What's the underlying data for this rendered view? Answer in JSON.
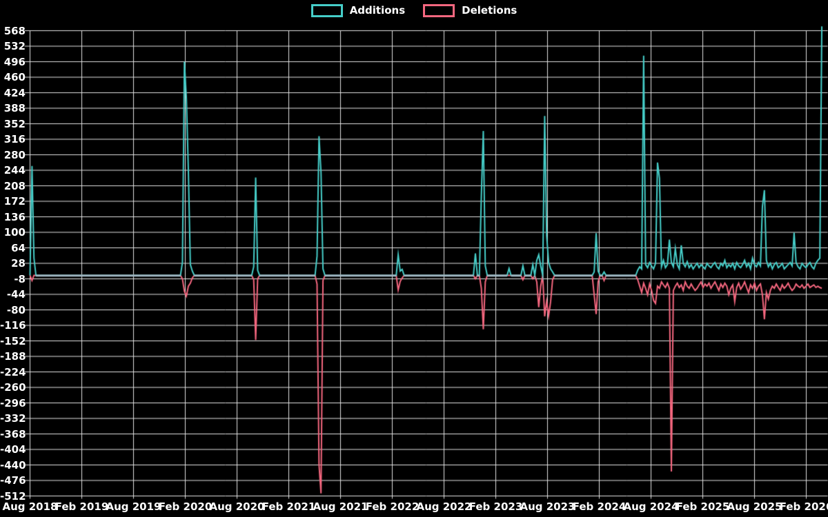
{
  "legend": {
    "items": [
      {
        "label": "Additions",
        "color": "#46cec9"
      },
      {
        "label": "Deletions",
        "color": "#f5677f"
      }
    ]
  },
  "chart_data": {
    "type": "line",
    "title": "",
    "xlabel": "",
    "ylabel": "",
    "grid": true,
    "legend_position": "top-center",
    "background_color": "#000000",
    "grid_color": "#e3e3e3",
    "text_color": "#ffffff",
    "zero_baseline_color": "#a4bac6",
    "x_axis": {
      "labels": [
        "Aug 2018",
        "Feb 2019",
        "Aug 2019",
        "Feb 2020",
        "Aug 2020",
        "Feb 2021",
        "Aug 2021",
        "Feb 2022",
        "Aug 2022",
        "Feb 2023",
        "Aug 2023",
        "Feb 2024",
        "Aug 2024",
        "Feb 2025",
        "Aug 2025",
        "Feb 2026"
      ],
      "weeks_per_label_interval": 26.143
    },
    "y_axis": {
      "min": -512,
      "max": 568,
      "tick_step": 36,
      "ticks": [
        568,
        532,
        496,
        460,
        424,
        388,
        352,
        316,
        280,
        244,
        208,
        172,
        136,
        100,
        64,
        28,
        -8,
        -44,
        -80,
        -116,
        -152,
        -188,
        -224,
        -260,
        -296,
        -332,
        -368,
        -404,
        -440,
        -476,
        -512
      ]
    },
    "series_names": [
      "Additions",
      "Deletions"
    ],
    "series_colors": [
      "#46cec9",
      "#f5677f"
    ],
    "weeks_total": 401,
    "start_period": "Aug 2018",
    "end_period": "Feb 2026",
    "default_value": 0,
    "values_note": "sparse map: weekIndex -> [additions, deletions]; all unlisted weeks are [0,0]",
    "values": {
      "1": [
        254,
        -12
      ],
      "2": [
        40,
        0
      ],
      "77": [
        30,
        -8
      ],
      "78": [
        496,
        -37
      ],
      "79": [
        410,
        -48
      ],
      "80": [
        243,
        -25
      ],
      "81": [
        25,
        -18
      ],
      "82": [
        10,
        -6
      ],
      "113": [
        20,
        -10
      ],
      "114": [
        227,
        -150
      ],
      "115": [
        12,
        -8
      ],
      "145": [
        45,
        -20
      ],
      "146": [
        323,
        -440
      ],
      "147": [
        240,
        -506
      ],
      "148": [
        15,
        -12
      ],
      "186": [
        48,
        -34
      ],
      "187": [
        10,
        -14
      ],
      "188": [
        14,
        -6
      ],
      "225": [
        51,
        -8
      ],
      "228": [
        185,
        -30
      ],
      "229": [
        335,
        -125
      ],
      "230": [
        22,
        -15
      ],
      "242": [
        16,
        0
      ],
      "249": [
        22,
        -10
      ],
      "254": [
        25,
        -8
      ],
      "256": [
        35,
        -15
      ],
      "257": [
        48,
        -74
      ],
      "258": [
        22,
        -25
      ],
      "260": [
        370,
        -95
      ],
      "261": [
        92,
        -60
      ],
      "262": [
        30,
        -94
      ],
      "263": [
        15,
        -61
      ],
      "264": [
        8,
        -10
      ],
      "285": [
        8,
        -45
      ],
      "286": [
        98,
        -90
      ],
      "287": [
        10,
        -15
      ],
      "290": [
        8,
        -12
      ],
      "307": [
        12,
        -10
      ],
      "308": [
        20,
        -25
      ],
      "309": [
        15,
        -40
      ],
      "310": [
        510,
        -18
      ],
      "311": [
        25,
        -30
      ],
      "312": [
        18,
        -45
      ],
      "313": [
        30,
        -20
      ],
      "314": [
        22,
        -35
      ],
      "315": [
        15,
        -58
      ],
      "316": [
        28,
        -65
      ],
      "317": [
        262,
        -25
      ],
      "318": [
        225,
        -30
      ],
      "319": [
        20,
        -15
      ],
      "320": [
        35,
        -22
      ],
      "321": [
        18,
        -28
      ],
      "322": [
        25,
        -18
      ],
      "323": [
        83,
        -30
      ],
      "324": [
        30,
        -455
      ],
      "325": [
        20,
        -35
      ],
      "326": [
        62,
        -25
      ],
      "327": [
        25,
        -18
      ],
      "328": [
        15,
        -28
      ],
      "329": [
        70,
        -22
      ],
      "330": [
        28,
        -35
      ],
      "331": [
        20,
        -15
      ],
      "332": [
        32,
        -25
      ],
      "333": [
        18,
        -30
      ],
      "334": [
        25,
        -20
      ],
      "335": [
        15,
        -28
      ],
      "336": [
        22,
        -35
      ],
      "337": [
        28,
        -30
      ],
      "338": [
        18,
        -22
      ],
      "339": [
        25,
        -15
      ],
      "340": [
        20,
        -28
      ],
      "341": [
        15,
        -20
      ],
      "342": [
        28,
        -25
      ],
      "343": [
        22,
        -18
      ],
      "344": [
        18,
        -30
      ],
      "345": [
        25,
        -22
      ],
      "346": [
        30,
        -15
      ],
      "347": [
        20,
        -25
      ],
      "348": [
        15,
        -35
      ],
      "349": [
        28,
        -20
      ],
      "350": [
        22,
        -28
      ],
      "351": [
        35,
        -18
      ],
      "352": [
        18,
        -25
      ],
      "353": [
        25,
        -45
      ],
      "354": [
        20,
        -30
      ],
      "355": [
        28,
        -22
      ],
      "356": [
        15,
        -61
      ],
      "357": [
        30,
        -28
      ],
      "358": [
        22,
        -18
      ],
      "359": [
        18,
        -32
      ],
      "360": [
        25,
        -25
      ],
      "361": [
        35,
        -15
      ],
      "362": [
        20,
        -28
      ],
      "363": [
        28,
        -40
      ],
      "364": [
        15,
        -22
      ],
      "365": [
        40,
        -30
      ],
      "366": [
        25,
        -18
      ],
      "367": [
        20,
        -35
      ],
      "368": [
        30,
        -25
      ],
      "369": [
        22,
        -20
      ],
      "370": [
        160,
        -45
      ],
      "371": [
        198,
        -102
      ],
      "372": [
        35,
        -40
      ],
      "373": [
        20,
        -55
      ],
      "374": [
        28,
        -35
      ],
      "375": [
        15,
        -25
      ],
      "376": [
        25,
        -30
      ],
      "377": [
        30,
        -20
      ],
      "378": [
        18,
        -28
      ],
      "379": [
        22,
        -35
      ],
      "380": [
        28,
        -22
      ],
      "381": [
        15,
        -30
      ],
      "382": [
        20,
        -25
      ],
      "383": [
        25,
        -18
      ],
      "384": [
        30,
        -28
      ],
      "385": [
        22,
        -35
      ],
      "386": [
        99,
        -30
      ],
      "387": [
        30,
        -20
      ],
      "388": [
        20,
        -25
      ],
      "389": [
        15,
        -28
      ],
      "390": [
        28,
        -22
      ],
      "391": [
        22,
        -30
      ],
      "392": [
        18,
        -25
      ],
      "393": [
        25,
        -20
      ],
      "394": [
        30,
        -28
      ],
      "395": [
        20,
        -25
      ],
      "396": [
        15,
        -22
      ],
      "397": [
        28,
        -28
      ],
      "398": [
        35,
        -25
      ],
      "399": [
        40,
        -28
      ],
      "400": [
        578,
        -30
      ]
    }
  }
}
